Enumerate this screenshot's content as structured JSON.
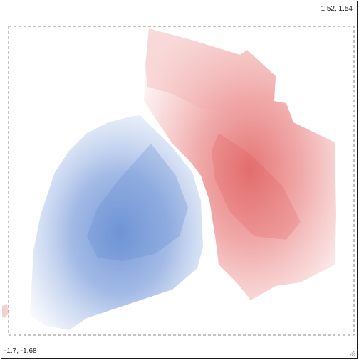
{
  "view": {
    "top_right_readout": "1.52, 1.54",
    "bottom_left_readout": "-1.7, -1.68"
  },
  "colors": {
    "blue_region": "#5a86cf",
    "red_region": "#e05a5a",
    "selection_border": "#8a8a8a",
    "frame_border": "#1e1e1e"
  },
  "icons": {
    "resize_grip": "resize-grip-icon"
  }
}
